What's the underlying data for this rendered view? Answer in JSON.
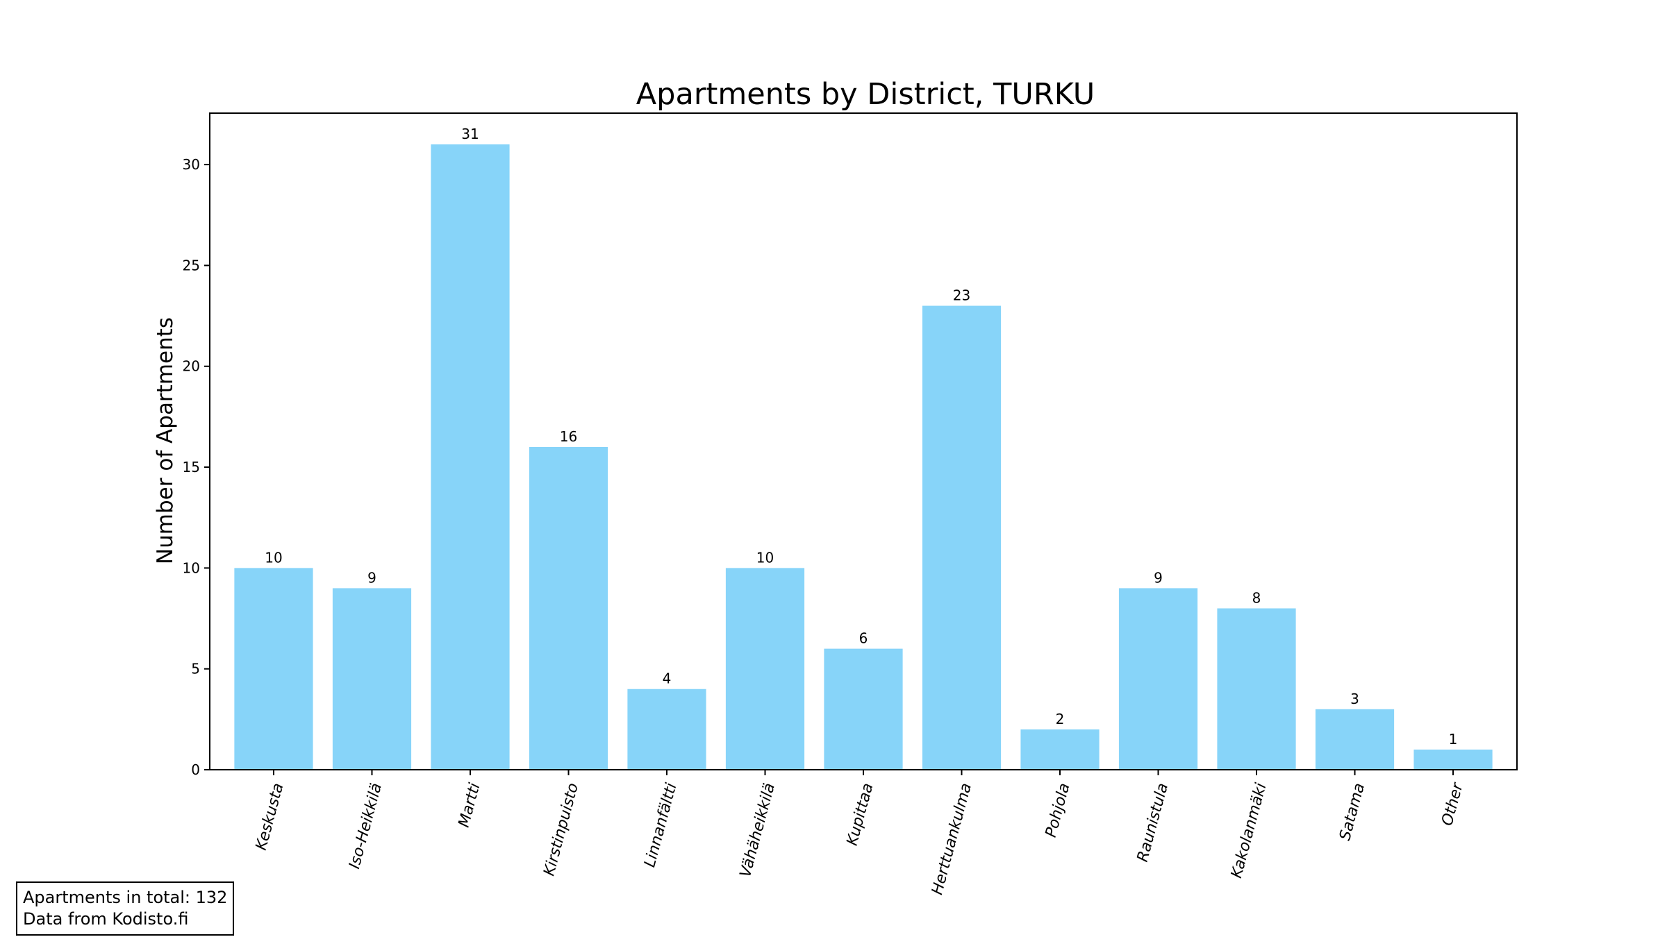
{
  "chart_data": {
    "type": "bar",
    "title": "Apartments by District, TURKU",
    "xlabel": "",
    "ylabel": "Number of Apartments",
    "categories": [
      "Keskusta",
      "Iso-Heikkilä",
      "Martti",
      "Kirstinpuisto",
      "Linnanfältti",
      "Vähäheikkilä",
      "Kupittaa",
      "Herttuankulma",
      "Pohjola",
      "Raunistula",
      "Kakolanmäki",
      "Satama",
      "Other"
    ],
    "values": [
      10,
      9,
      31,
      16,
      4,
      10,
      6,
      23,
      2,
      9,
      8,
      3,
      1
    ],
    "data_labels": [
      "10",
      "9",
      "31",
      "16",
      "4",
      "10",
      "6",
      "23",
      "2",
      "9",
      "8",
      "3",
      "1"
    ],
    "ylim": [
      0,
      32.55
    ],
    "yticks": [
      0,
      5,
      10,
      15,
      20,
      25,
      30
    ],
    "ytick_labels": [
      "0",
      "5",
      "10",
      "15",
      "20",
      "25",
      "30"
    ],
    "grid": false,
    "bar_color": "#87d4f9",
    "legend": "none"
  },
  "annotation": {
    "line1": "Apartments in total: 132",
    "line2": "Data from Kodisto.fi"
  }
}
